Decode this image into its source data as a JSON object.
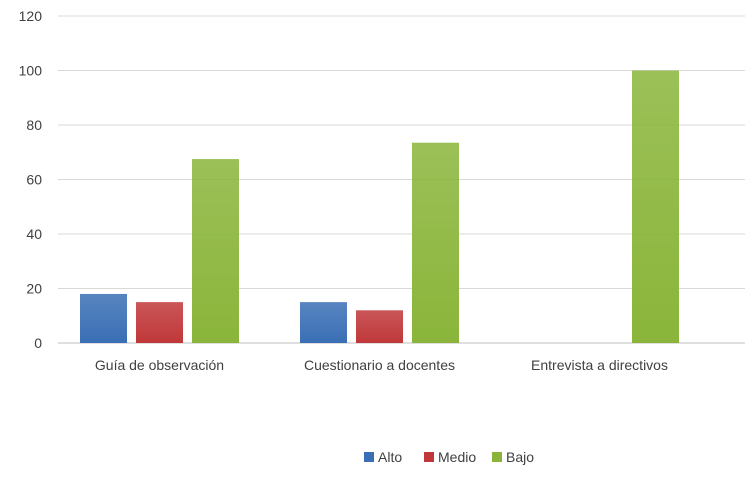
{
  "chart_data": {
    "type": "bar",
    "categories": [
      "Guía de observación",
      "Cuestionario a docentes",
      "Entrevista a directivos"
    ],
    "series": [
      {
        "name": "Alto",
        "values": [
          18,
          15,
          0
        ],
        "color": "#3a6fb5"
      },
      {
        "name": "Medio",
        "values": [
          15,
          12,
          0
        ],
        "color": "#c0383a"
      },
      {
        "name": "Bajo",
        "values": [
          67.5,
          73.5,
          100
        ],
        "color": "#8ab53a"
      }
    ],
    "ylim": [
      0,
      120
    ],
    "yticks": [
      0,
      20,
      40,
      60,
      80,
      100,
      120
    ],
    "grid": true,
    "legend": "bottom-center",
    "title": "",
    "xlabel": "",
    "ylabel": ""
  }
}
